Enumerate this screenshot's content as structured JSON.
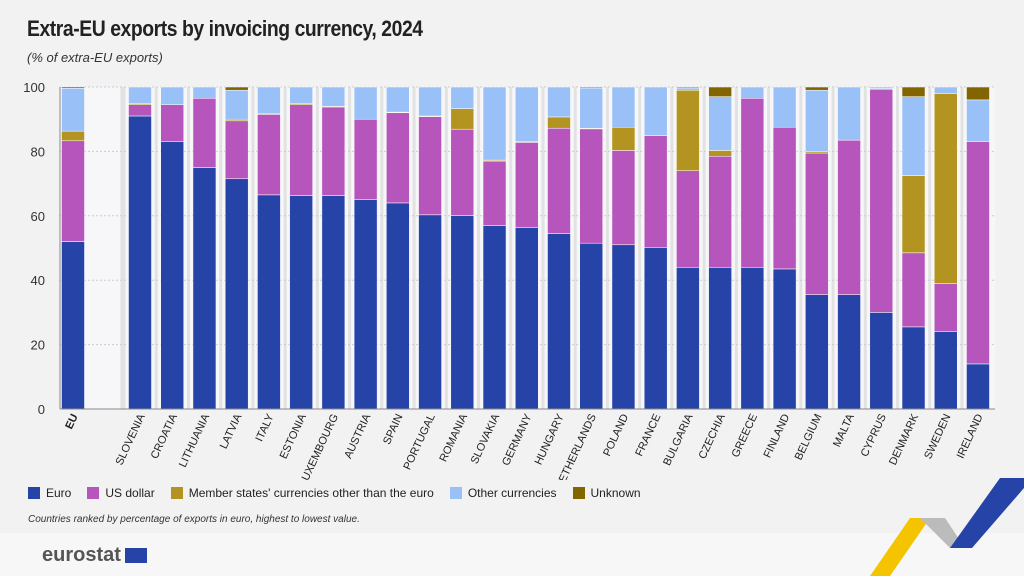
{
  "header": {
    "title": "Extra-EU exports by invoicing currency, 2024",
    "subtitle": "(% of extra-EU exports)"
  },
  "footnote": "Countries ranked by percentage of exports in euro, highest to lowest value.",
  "logo_text": "eurostat",
  "chart_data": {
    "type": "bar",
    "stacked": true,
    "title": "Extra-EU exports by invoicing currency, 2024",
    "ylabel": "",
    "ylim": [
      0,
      100
    ],
    "yticks": [
      0,
      20,
      40,
      60,
      80,
      100
    ],
    "grid": true,
    "legend_position": "bottom",
    "categories": [
      "EU",
      "SLOVENIA",
      "CROATIA",
      "LITHUANIA",
      "LATVIA",
      "ITALY",
      "ESTONIA",
      "LUXEMBOURG",
      "AUSTRIA",
      "SPAIN",
      "PORTUGAL",
      "ROMANIA",
      "SLOVAKIA",
      "GERMANY",
      "HUNGARY",
      "NETHERLANDS",
      "POLAND",
      "FRANCE",
      "BULGARIA",
      "CZECHIA",
      "GREECE",
      "FINLAND",
      "BELGIUM",
      "MALTA",
      "CYPRUS",
      "DENMARK",
      "SWEDEN",
      "IRELAND"
    ],
    "series": [
      {
        "name": "Euro",
        "color": "#2644A7",
        "values": [
          52,
          91,
          83,
          75,
          71.5,
          66.5,
          66.3,
          66.3,
          65,
          64,
          60.3,
          60.1,
          57,
          56.3,
          54.5,
          51.5,
          51,
          50.2,
          44,
          44,
          44,
          43.5,
          35.5,
          35.5,
          30,
          25.5,
          24,
          14
        ]
      },
      {
        "name": "US dollar",
        "color": "#B656BD",
        "values": [
          31.3,
          3.5,
          11.5,
          21.5,
          18,
          25,
          28.2,
          27.5,
          25,
          28,
          30.5,
          26.8,
          20,
          26.5,
          32.7,
          35.5,
          29.3,
          34.7,
          30,
          34.5,
          52.5,
          44,
          44,
          48,
          69.3,
          23,
          15,
          69
        ]
      },
      {
        "name": "Member states' currencies other than the euro",
        "color": "#B39421",
        "values": [
          3,
          0.3,
          0,
          0,
          0.5,
          0.3,
          0.3,
          0.2,
          0,
          0.2,
          0.2,
          6.4,
          0.3,
          0.2,
          3.5,
          0.2,
          7.2,
          0,
          25,
          1.8,
          0,
          0,
          0.5,
          0,
          0.2,
          24,
          59,
          0
        ]
      },
      {
        "name": "Other currencies",
        "color": "#99C0F7",
        "values": [
          13.3,
          5.2,
          5.5,
          3.5,
          9,
          8.2,
          5.2,
          6,
          10,
          7.8,
          9,
          6.7,
          22.7,
          17,
          9.3,
          12.5,
          12.5,
          15.1,
          0.7,
          16.7,
          3.5,
          12.5,
          19,
          16.5,
          0.5,
          24.5,
          2,
          13
        ]
      },
      {
        "name": "Unknown",
        "color": "#836500",
        "values": [
          0.4,
          0,
          0,
          0,
          1,
          0,
          0,
          0,
          0,
          0,
          0,
          0,
          0,
          0,
          0,
          0.3,
          0,
          0,
          0.3,
          3,
          0,
          0,
          1,
          0,
          0,
          3,
          0,
          4
        ]
      }
    ]
  }
}
